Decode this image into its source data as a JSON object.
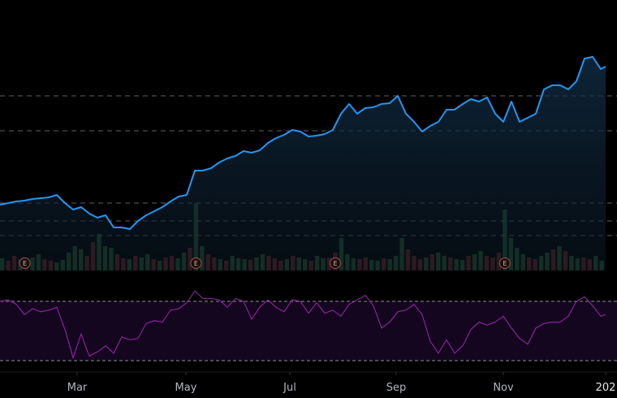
{
  "chart_data": [
    {
      "type": "area",
      "pane": "price",
      "line_color": "#2196f3",
      "ylim": [
        -33,
        300
      ],
      "grid": false,
      "values": [
        48,
        50,
        52,
        53,
        55,
        56,
        57,
        60,
        50,
        42,
        45,
        37,
        32,
        35,
        20,
        20,
        18,
        28,
        35,
        40,
        45,
        52,
        58,
        60,
        90,
        90,
        93,
        100,
        105,
        108,
        114,
        112,
        115,
        124,
        130,
        134,
        140,
        138,
        132,
        133,
        135,
        140,
        160,
        172,
        160,
        167,
        168,
        172,
        173,
        182,
        160,
        150,
        138,
        145,
        150,
        165,
        165,
        172,
        178,
        175,
        180,
        160,
        150,
        175,
        150,
        155,
        160,
        190,
        195,
        195,
        190,
        200,
        228,
        230,
        215,
        218
      ],
      "reference_levels": [
        182,
        139,
        50,
        28,
        10
      ]
    },
    {
      "type": "bar",
      "pane": "volume",
      "ylim": [
        0,
        100
      ],
      "up_color": "#1e4a26",
      "down_color": "#5a1d1d",
      "values": [
        15,
        12,
        18,
        14,
        10,
        16,
        20,
        14,
        12,
        10,
        13,
        22,
        30,
        26,
        18,
        35,
        45,
        30,
        28,
        20,
        15,
        14,
        18,
        16,
        20,
        14,
        12,
        16,
        18,
        15,
        22,
        28,
        83,
        30,
        20,
        16,
        14,
        12,
        18,
        15,
        14,
        13,
        16,
        20,
        18,
        15,
        12,
        14,
        18,
        16,
        14,
        12,
        18,
        15,
        16,
        22,
        40,
        20,
        15,
        14,
        16,
        13,
        12,
        15,
        14,
        18,
        40,
        26,
        18,
        14,
        16,
        20,
        22,
        18,
        16,
        14,
        13,
        18,
        20,
        24,
        18,
        16,
        22,
        75,
        40,
        28,
        20,
        16,
        14,
        18,
        22,
        26,
        30,
        24,
        18,
        15,
        16,
        14,
        18,
        12
      ],
      "directions": "grrgrggrrgggggrrgggrrgrggrgrrggrggrrgrgggrggrrrgrggrggrrgggrrggrgggrrrgrggrggrggrrrggggrrggrgrggrrgg",
      "earnings_markers": [
        {
          "label": "E",
          "bar": 4
        },
        {
          "label": "E",
          "bar": 32
        },
        {
          "label": "E",
          "bar": 55
        },
        {
          "label": "E",
          "bar": 83
        }
      ]
    },
    {
      "type": "line",
      "pane": "rsi",
      "line_color": "#9c27b0",
      "band_color": "#14061f",
      "ylim": [
        30,
        70
      ],
      "bands": [
        70,
        30
      ],
      "values": [
        70,
        71,
        68,
        61,
        65,
        63,
        64,
        66,
        51,
        32,
        48,
        33,
        36,
        40,
        35,
        46,
        44,
        45,
        55,
        57,
        56,
        64,
        65,
        69,
        77,
        72,
        72,
        71,
        66,
        72,
        70,
        58,
        66,
        71,
        66,
        63,
        71,
        70,
        62,
        69,
        62,
        64,
        60,
        68,
        71,
        74,
        67,
        52,
        56,
        63,
        64,
        68,
        61,
        43,
        35,
        44,
        35,
        40,
        51,
        56,
        54,
        56,
        60,
        52,
        45,
        41,
        52,
        55,
        56,
        56,
        60,
        70,
        73,
        67,
        60,
        61
      ]
    }
  ],
  "x_axis": {
    "ticks": [
      "Mar",
      "May",
      "Jul",
      "Sep",
      "Nov",
      "202"
    ]
  }
}
